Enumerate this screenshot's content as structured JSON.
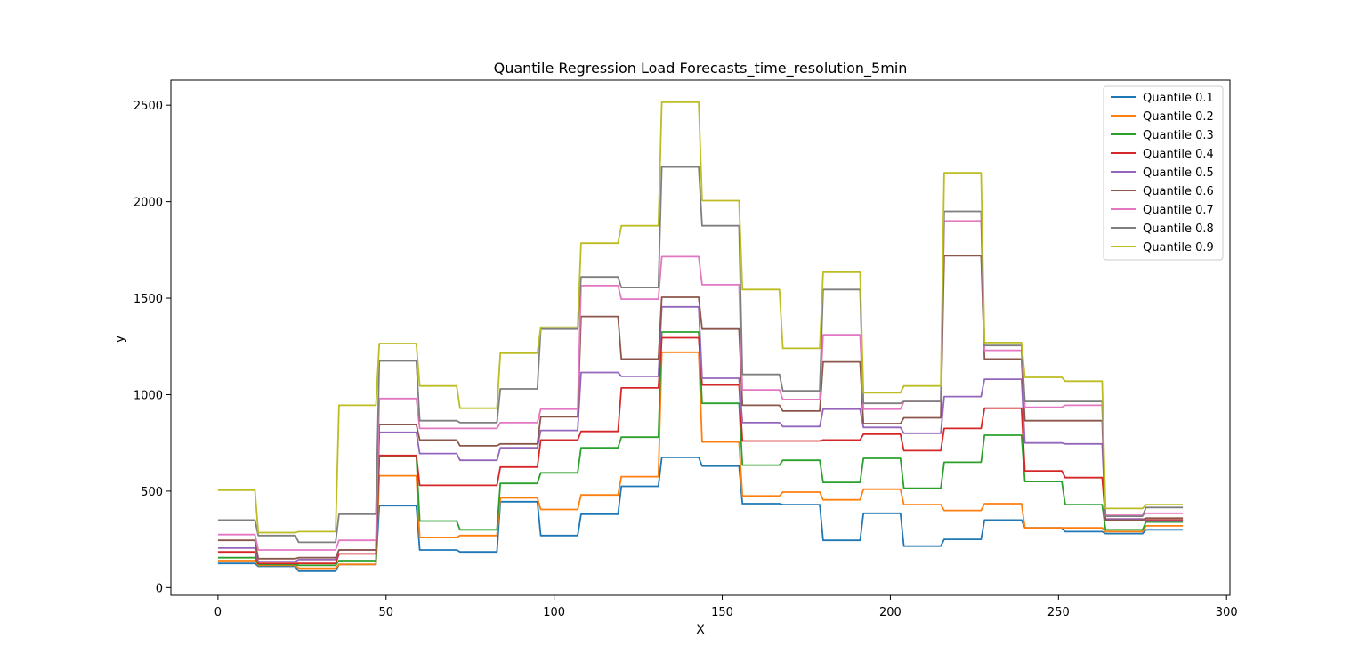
{
  "chart_data": {
    "type": "line",
    "title": "Quantile Regression Load Forecasts_time_resolution_5min",
    "xlabel": "X",
    "ylabel": "y",
    "xlim": [
      -14,
      301
    ],
    "ylim": [
      -40,
      2630
    ],
    "xticks": [
      0,
      50,
      100,
      150,
      200,
      250,
      300
    ],
    "yticks": [
      0,
      500,
      1000,
      1500,
      2000,
      2500
    ],
    "grid": false,
    "legend_position": "top-right",
    "segment_starts": [
      0,
      12,
      24,
      36,
      48,
      60,
      72,
      84,
      96,
      108,
      120,
      132,
      144,
      156,
      168,
      180,
      192,
      204,
      216,
      228,
      240,
      252,
      264,
      276
    ],
    "x_max": 287,
    "series": [
      {
        "name": "Quantile 0.1",
        "color": "#1f77b4",
        "values": [
          125,
          110,
          85,
          120,
          425,
          195,
          185,
          445,
          270,
          380,
          525,
          675,
          630,
          435,
          430,
          245,
          385,
          215,
          250,
          350,
          310,
          290,
          280,
          300
        ]
      },
      {
        "name": "Quantile 0.2",
        "color": "#ff7f0e",
        "values": [
          140,
          115,
          100,
          120,
          580,
          260,
          270,
          465,
          405,
          480,
          575,
          1220,
          755,
          475,
          495,
          455,
          510,
          430,
          400,
          435,
          310,
          310,
          290,
          320
        ]
      },
      {
        "name": "Quantile 0.3",
        "color": "#2ca02c",
        "values": [
          155,
          120,
          115,
          140,
          680,
          345,
          300,
          540,
          595,
          725,
          780,
          1325,
          955,
          635,
          660,
          545,
          670,
          515,
          650,
          790,
          550,
          430,
          300,
          340
        ]
      },
      {
        "name": "Quantile 0.4",
        "color": "#d62728",
        "values": [
          185,
          125,
          125,
          175,
          685,
          530,
          530,
          625,
          765,
          810,
          1035,
          1295,
          1050,
          760,
          760,
          765,
          795,
          710,
          825,
          930,
          605,
          570,
          355,
          350
        ]
      },
      {
        "name": "Quantile 0.5",
        "color": "#9467bd",
        "values": [
          205,
          135,
          145,
          195,
          805,
          695,
          660,
          725,
          815,
          1115,
          1095,
          1455,
          1085,
          855,
          835,
          925,
          830,
          800,
          990,
          1080,
          750,
          745,
          355,
          345
        ]
      },
      {
        "name": "Quantile 0.6",
        "color": "#8c564b",
        "values": [
          245,
          150,
          155,
          195,
          845,
          765,
          735,
          745,
          885,
          1405,
          1185,
          1505,
          1340,
          945,
          915,
          1170,
          850,
          880,
          1720,
          1185,
          865,
          865,
          350,
          360
        ]
      },
      {
        "name": "Quantile 0.7",
        "color": "#e377c2",
        "values": [
          275,
          195,
          195,
          245,
          980,
          825,
          825,
          855,
          925,
          1565,
          1495,
          1715,
          1570,
          1025,
          975,
          1310,
          925,
          965,
          1900,
          1230,
          935,
          945,
          375,
          385
        ]
      },
      {
        "name": "Quantile 0.8",
        "color": "#7f7f7f",
        "values": [
          350,
          270,
          235,
          380,
          1175,
          865,
          855,
          1030,
          1340,
          1610,
          1555,
          2180,
          1875,
          1105,
          1020,
          1545,
          955,
          965,
          1950,
          1255,
          965,
          965,
          370,
          415
        ]
      },
      {
        "name": "Quantile 0.9",
        "color": "#bcbd22",
        "values": [
          505,
          285,
          290,
          945,
          1265,
          1045,
          930,
          1215,
          1350,
          1785,
          1875,
          2515,
          2005,
          1545,
          1240,
          1635,
          1010,
          1045,
          2150,
          1270,
          1090,
          1070,
          410,
          430
        ]
      }
    ]
  }
}
